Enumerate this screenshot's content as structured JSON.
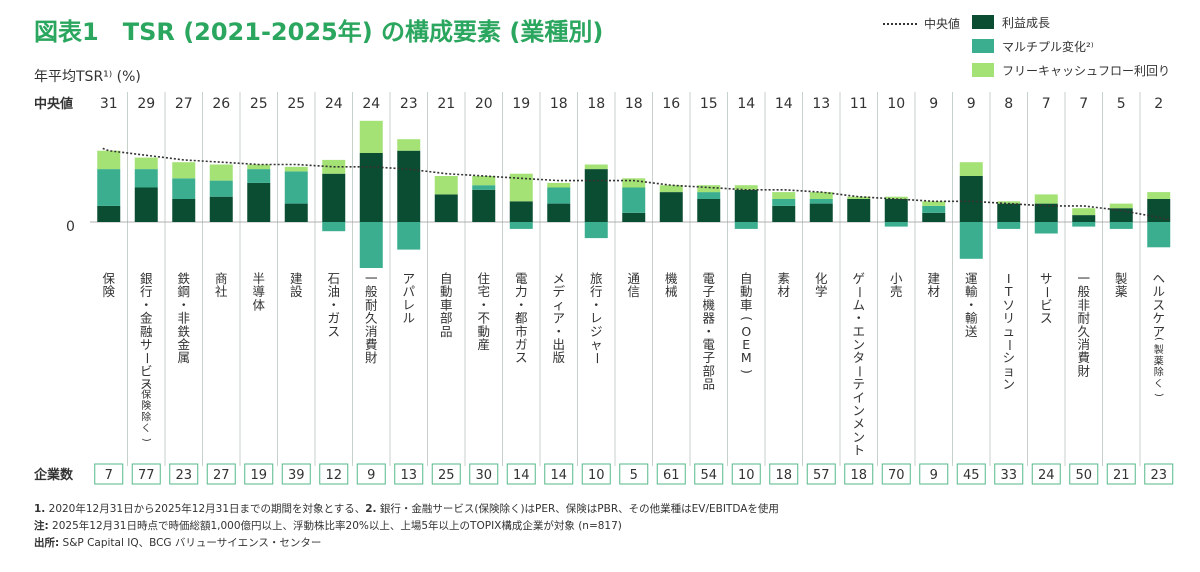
{
  "title": "図表1　TSR (2021-2025年) の構成要素 (業種別)",
  "y_unit_label": "年平均TSR¹⁾ (%)",
  "median_row_label": "中央値",
  "zero_label": "0",
  "count_row_label": "企業数",
  "legend": {
    "median_line": "中央値",
    "profit_growth": "利益成長",
    "multiple_change": "マルチプル変化²⁾",
    "fcf_yield": "フリーキャッシュフロー利回り"
  },
  "colors": {
    "profit_growth": "#0b4d32",
    "multiple_change": "#3aae8e",
    "fcf_yield": "#a4e276",
    "title": "#2aa65f",
    "count_border": "#56b88a",
    "separator": "#b9c6bf"
  },
  "footnotes": {
    "note1_num": "1.",
    "note1_text": " 2020年12月31日から2025年12月31日までの期間を対象とする、",
    "note2_num": "2.",
    "note2_text": " 銀行・金融サービス(保険除く)はPER、保険はPBR、その他業種はEV/EBITDAを使用",
    "note_label": "注:",
    "note_text": " 2025年12月31日時点で時価総額1,000億円以上、浮動株比率20%以上、上場5年以上のTOPIX構成企業が対象 (n=817)",
    "source_label": "出所:",
    "source_text": " S&P Capital IQ、BCG バリューサイエンス・センター"
  },
  "chart_data": {
    "type": "bar",
    "stacked": true,
    "categories": [
      "保険",
      "銀行・金融サービス",
      "鉄鋼・非鉄金属",
      "商社",
      "半導体",
      "建設",
      "石油・ガス",
      "一般耐久消費財",
      "アパレル",
      "自動車部品",
      "住宅・不動産",
      "電力・都市ガス",
      "メディア・出版",
      "旅行・レジャー",
      "通信",
      "機械",
      "電子機器・電子部品",
      "自動車(OEM)",
      "素材",
      "化学",
      "ゲーム・エンターテインメント",
      "小売",
      "建材",
      "運輸・輸送",
      "ITソリューション",
      "サービス",
      "一般非耐久消費財",
      "製薬",
      "ヘルスケア(製薬除く)"
    ],
    "category_sub": [
      "",
      "(保険除く)",
      "",
      "",
      "",
      "",
      "",
      "",
      "",
      "",
      "",
      "",
      "",
      "",
      "",
      "",
      "",
      "",
      "",
      "",
      "",
      "",
      "",
      "",
      "",
      "",
      "",
      "",
      "(製薬除く)"
    ],
    "category_main": [
      "保険",
      "銀行・金融サービス",
      "鉄鋼・非鉄金属",
      "商社",
      "半導体",
      "建設",
      "石油・ガス",
      "一般耐久消費財",
      "アパレル",
      "自動車部品",
      "住宅・不動産",
      "電力・都市ガス",
      "メディア・出版",
      "旅行・レジャー",
      "通信",
      "機械",
      "電子機器・電子部品",
      "自動車(OEM)",
      "素材",
      "化学",
      "ゲーム・エンターテインメント",
      "小売",
      "建材",
      "運輸・輸送",
      "ITソリューション",
      "サービス",
      "一般非耐久消費財",
      "製薬",
      "ヘルスケア"
    ],
    "median_tsr": [
      31,
      29,
      27,
      26,
      25,
      25,
      24,
      24,
      23,
      21,
      20,
      19,
      18,
      18,
      18,
      16,
      15,
      14,
      14,
      13,
      11,
      10,
      9,
      9,
      8,
      7,
      7,
      5,
      2
    ],
    "company_counts": [
      7,
      77,
      23,
      27,
      19,
      39,
      12,
      9,
      13,
      25,
      30,
      14,
      14,
      10,
      5,
      61,
      54,
      10,
      18,
      57,
      18,
      70,
      9,
      45,
      33,
      24,
      50,
      21,
      23
    ],
    "series": [
      {
        "name": "利益成長",
        "values": [
          7,
          15,
          10,
          11,
          17,
          8,
          21,
          30,
          31,
          12,
          14,
          9,
          8,
          23,
          4,
          13,
          10,
          14,
          7,
          8,
          10,
          10,
          4,
          20,
          8,
          8,
          3,
          6,
          10
        ]
      },
      {
        "name": "マルチプル変化²⁾",
        "values": [
          16,
          8,
          9,
          7,
          6,
          14,
          -4,
          -20,
          -12,
          0,
          2,
          -3,
          7,
          -7,
          11,
          0,
          3,
          -3,
          3,
          2,
          0,
          -2,
          3,
          -16,
          -3,
          -5,
          -2,
          -3,
          -11
        ]
      },
      {
        "name": "フリーキャッシュフロー利回り",
        "values": [
          8,
          5,
          7,
          7,
          2,
          2,
          6,
          14,
          5,
          8,
          4,
          12,
          2,
          2,
          4,
          3,
          3,
          2,
          3,
          3,
          1,
          1,
          2,
          6,
          1,
          4,
          3,
          2,
          3
        ]
      }
    ],
    "median_line": [
      31,
      29,
      27,
      26,
      25,
      25,
      24,
      24,
      23,
      21,
      20,
      19,
      18,
      18,
      18,
      16,
      15,
      14,
      14,
      13,
      11,
      10,
      9,
      9,
      8,
      7,
      7,
      5,
      2
    ],
    "ylim": [
      -22,
      45
    ],
    "legend_position": "top-right",
    "grid": false
  }
}
